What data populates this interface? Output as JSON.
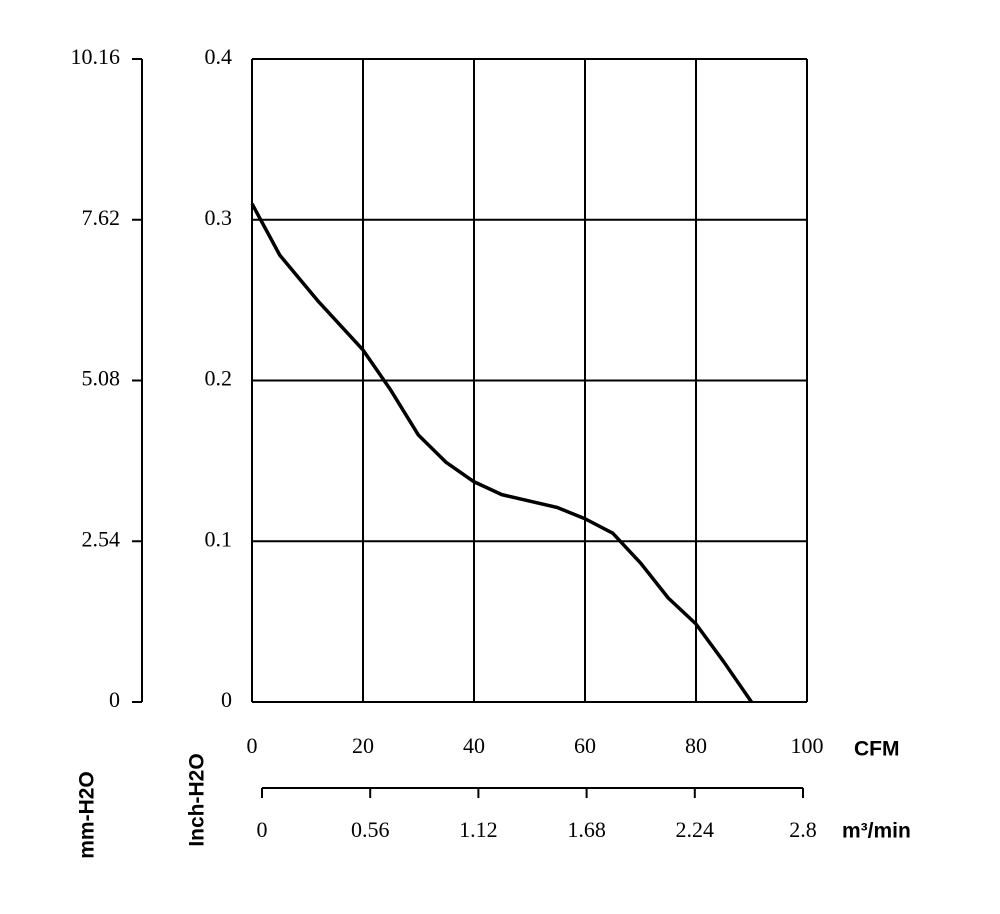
{
  "chart_data": {
    "type": "line",
    "x": [
      0,
      5,
      12,
      20,
      25,
      30,
      35,
      40,
      45,
      50,
      55,
      60,
      65,
      70,
      75,
      80,
      85,
      90
    ],
    "series": [
      {
        "color": "#000000",
        "values": [
          0.31,
          0.278,
          0.249,
          0.219,
          0.194,
          0.166,
          0.149,
          0.137,
          0.129,
          0.125,
          0.121,
          0.114,
          0.105,
          0.0865,
          0.0647,
          0.0485,
          0.025,
          0
        ]
      }
    ],
    "xlim": [
      0,
      100
    ],
    "xticks": [
      0,
      20,
      40,
      60,
      80,
      100
    ],
    "ylim": [
      0,
      0.4
    ],
    "yticks": [
      0,
      0.1,
      0.2,
      0.3,
      0.4
    ],
    "y2lim": [
      0,
      10.16
    ],
    "y2ticks": [
      0,
      2.54,
      5.08,
      7.62,
      10.16
    ],
    "x2lim": [
      0,
      2.8
    ],
    "x2ticks": [
      0,
      0.56,
      1.12,
      1.68,
      2.24,
      2.8
    ],
    "xlabel": "CFM",
    "x2label": "m³/min",
    "ylabel": "Inch-H2O",
    "y2label": "mm-H2O",
    "grid": true
  }
}
